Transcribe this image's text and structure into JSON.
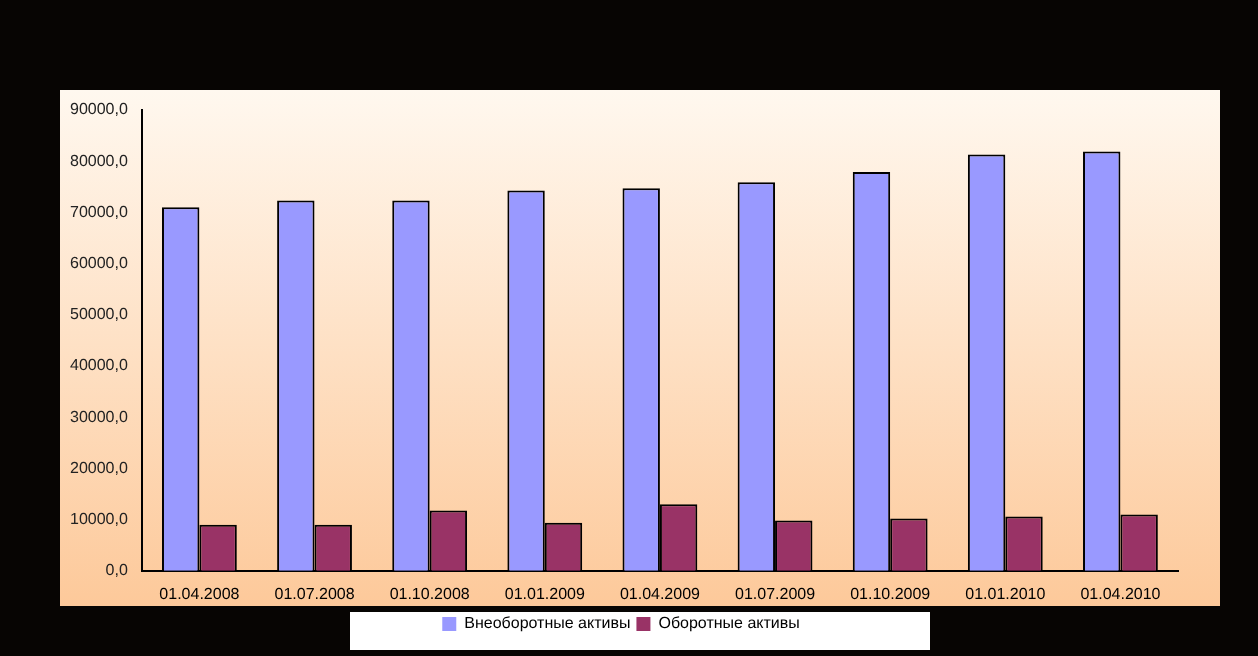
{
  "chart_data": {
    "type": "bar",
    "categories": [
      "01.04.2008",
      "01.07.2008",
      "01.10.2008",
      "01.01.2009",
      "01.04.2009",
      "01.07.2009",
      "01.10.2009",
      "01.01.2010",
      "01.04.2010"
    ],
    "series": [
      {
        "name": "Внеоборотные активы",
        "color": "#9999ff",
        "values": [
          71000,
          72300,
          72300,
          74300,
          74700,
          75900,
          77900,
          81300,
          81900
        ]
      },
      {
        "name": "Оборотные активы",
        "color": "#993366",
        "values": [
          9000,
          9000,
          11800,
          9400,
          13000,
          9800,
          10200,
          10600,
          11000
        ]
      }
    ],
    "ylim": [
      0,
      90000
    ],
    "yticks": [
      {
        "value": 0,
        "label": "0,0"
      },
      {
        "value": 10000,
        "label": "10000,0"
      },
      {
        "value": 20000,
        "label": "20000,0"
      },
      {
        "value": 30000,
        "label": "30000,0"
      },
      {
        "value": 40000,
        "label": "40000,0"
      },
      {
        "value": 50000,
        "label": "50000,0"
      },
      {
        "value": 60000,
        "label": "60000,0"
      },
      {
        "value": 70000,
        "label": "70000,0"
      },
      {
        "value": 80000,
        "label": "80000,0"
      },
      {
        "value": 90000,
        "label": "90000,0"
      }
    ],
    "grid": false,
    "legend": "bottom"
  }
}
